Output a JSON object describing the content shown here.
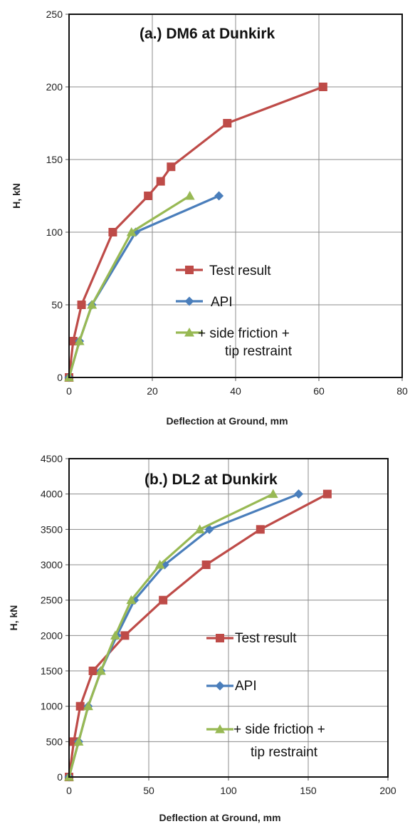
{
  "chart_data": [
    {
      "type": "line",
      "title": "(a.) DM6 at Dunkirk",
      "xlabel": "Deflection at Ground, mm",
      "ylabel": "H, kN",
      "xlim": [
        0,
        80
      ],
      "ylim": [
        0,
        250
      ],
      "xticks": [
        0,
        20,
        40,
        60,
        80
      ],
      "yticks": [
        0,
        50,
        100,
        150,
        200,
        250
      ],
      "grid": true,
      "legend": "center-right",
      "series": [
        {
          "name": "Test result",
          "color": "#be4b48",
          "marker": "square",
          "x": [
            0,
            1,
            3,
            10.5,
            19,
            22,
            24.5,
            38,
            61
          ],
          "y": [
            0,
            25,
            50,
            100,
            125,
            135,
            145,
            175,
            200
          ]
        },
        {
          "name": "API",
          "color": "#4a7ebb",
          "marker": "diamond",
          "x": [
            0,
            2.5,
            5.5,
            16,
            36
          ],
          "y": [
            0,
            25,
            50,
            100,
            125
          ]
        },
        {
          "name": "+ side friction +",
          "name_line2": "tip restraint",
          "color": "#98b954",
          "marker": "triangle",
          "x": [
            0,
            2.5,
            5.5,
            15,
            29
          ],
          "y": [
            0,
            25,
            50,
            100,
            125
          ]
        }
      ]
    },
    {
      "type": "line",
      "title": "(b.) DL2 at Dunkirk",
      "xlabel": "Deflection at Ground, mm",
      "ylabel": "H, kN",
      "xlim": [
        0,
        200
      ],
      "ylim": [
        0,
        4500
      ],
      "xticks": [
        0,
        50,
        100,
        150,
        200
      ],
      "yticks": [
        0,
        500,
        1000,
        1500,
        2000,
        2500,
        3000,
        3500,
        4000,
        4500
      ],
      "grid": true,
      "legend": "center-right",
      "series": [
        {
          "name": "Test result",
          "color": "#be4b48",
          "marker": "square",
          "x": [
            0,
            3,
            7,
            15,
            35,
            59,
            86,
            120,
            162
          ],
          "y": [
            0,
            500,
            1000,
            1500,
            2000,
            2500,
            3000,
            3500,
            4000
          ]
        },
        {
          "name": "API",
          "color": "#4a7ebb",
          "marker": "diamond",
          "x": [
            0,
            6,
            12,
            20,
            30,
            41,
            60,
            88,
            144
          ],
          "y": [
            0,
            500,
            1000,
            1500,
            2000,
            2500,
            3000,
            3500,
            4000
          ]
        },
        {
          "name": "+ side friction +",
          "name_line2": "tip restraint",
          "color": "#98b954",
          "marker": "triangle",
          "x": [
            0,
            6,
            12,
            20,
            29,
            39,
            57,
            82,
            128
          ],
          "y": [
            0,
            500,
            1000,
            1500,
            2000,
            2500,
            3000,
            3500,
            4000
          ]
        }
      ]
    }
  ]
}
